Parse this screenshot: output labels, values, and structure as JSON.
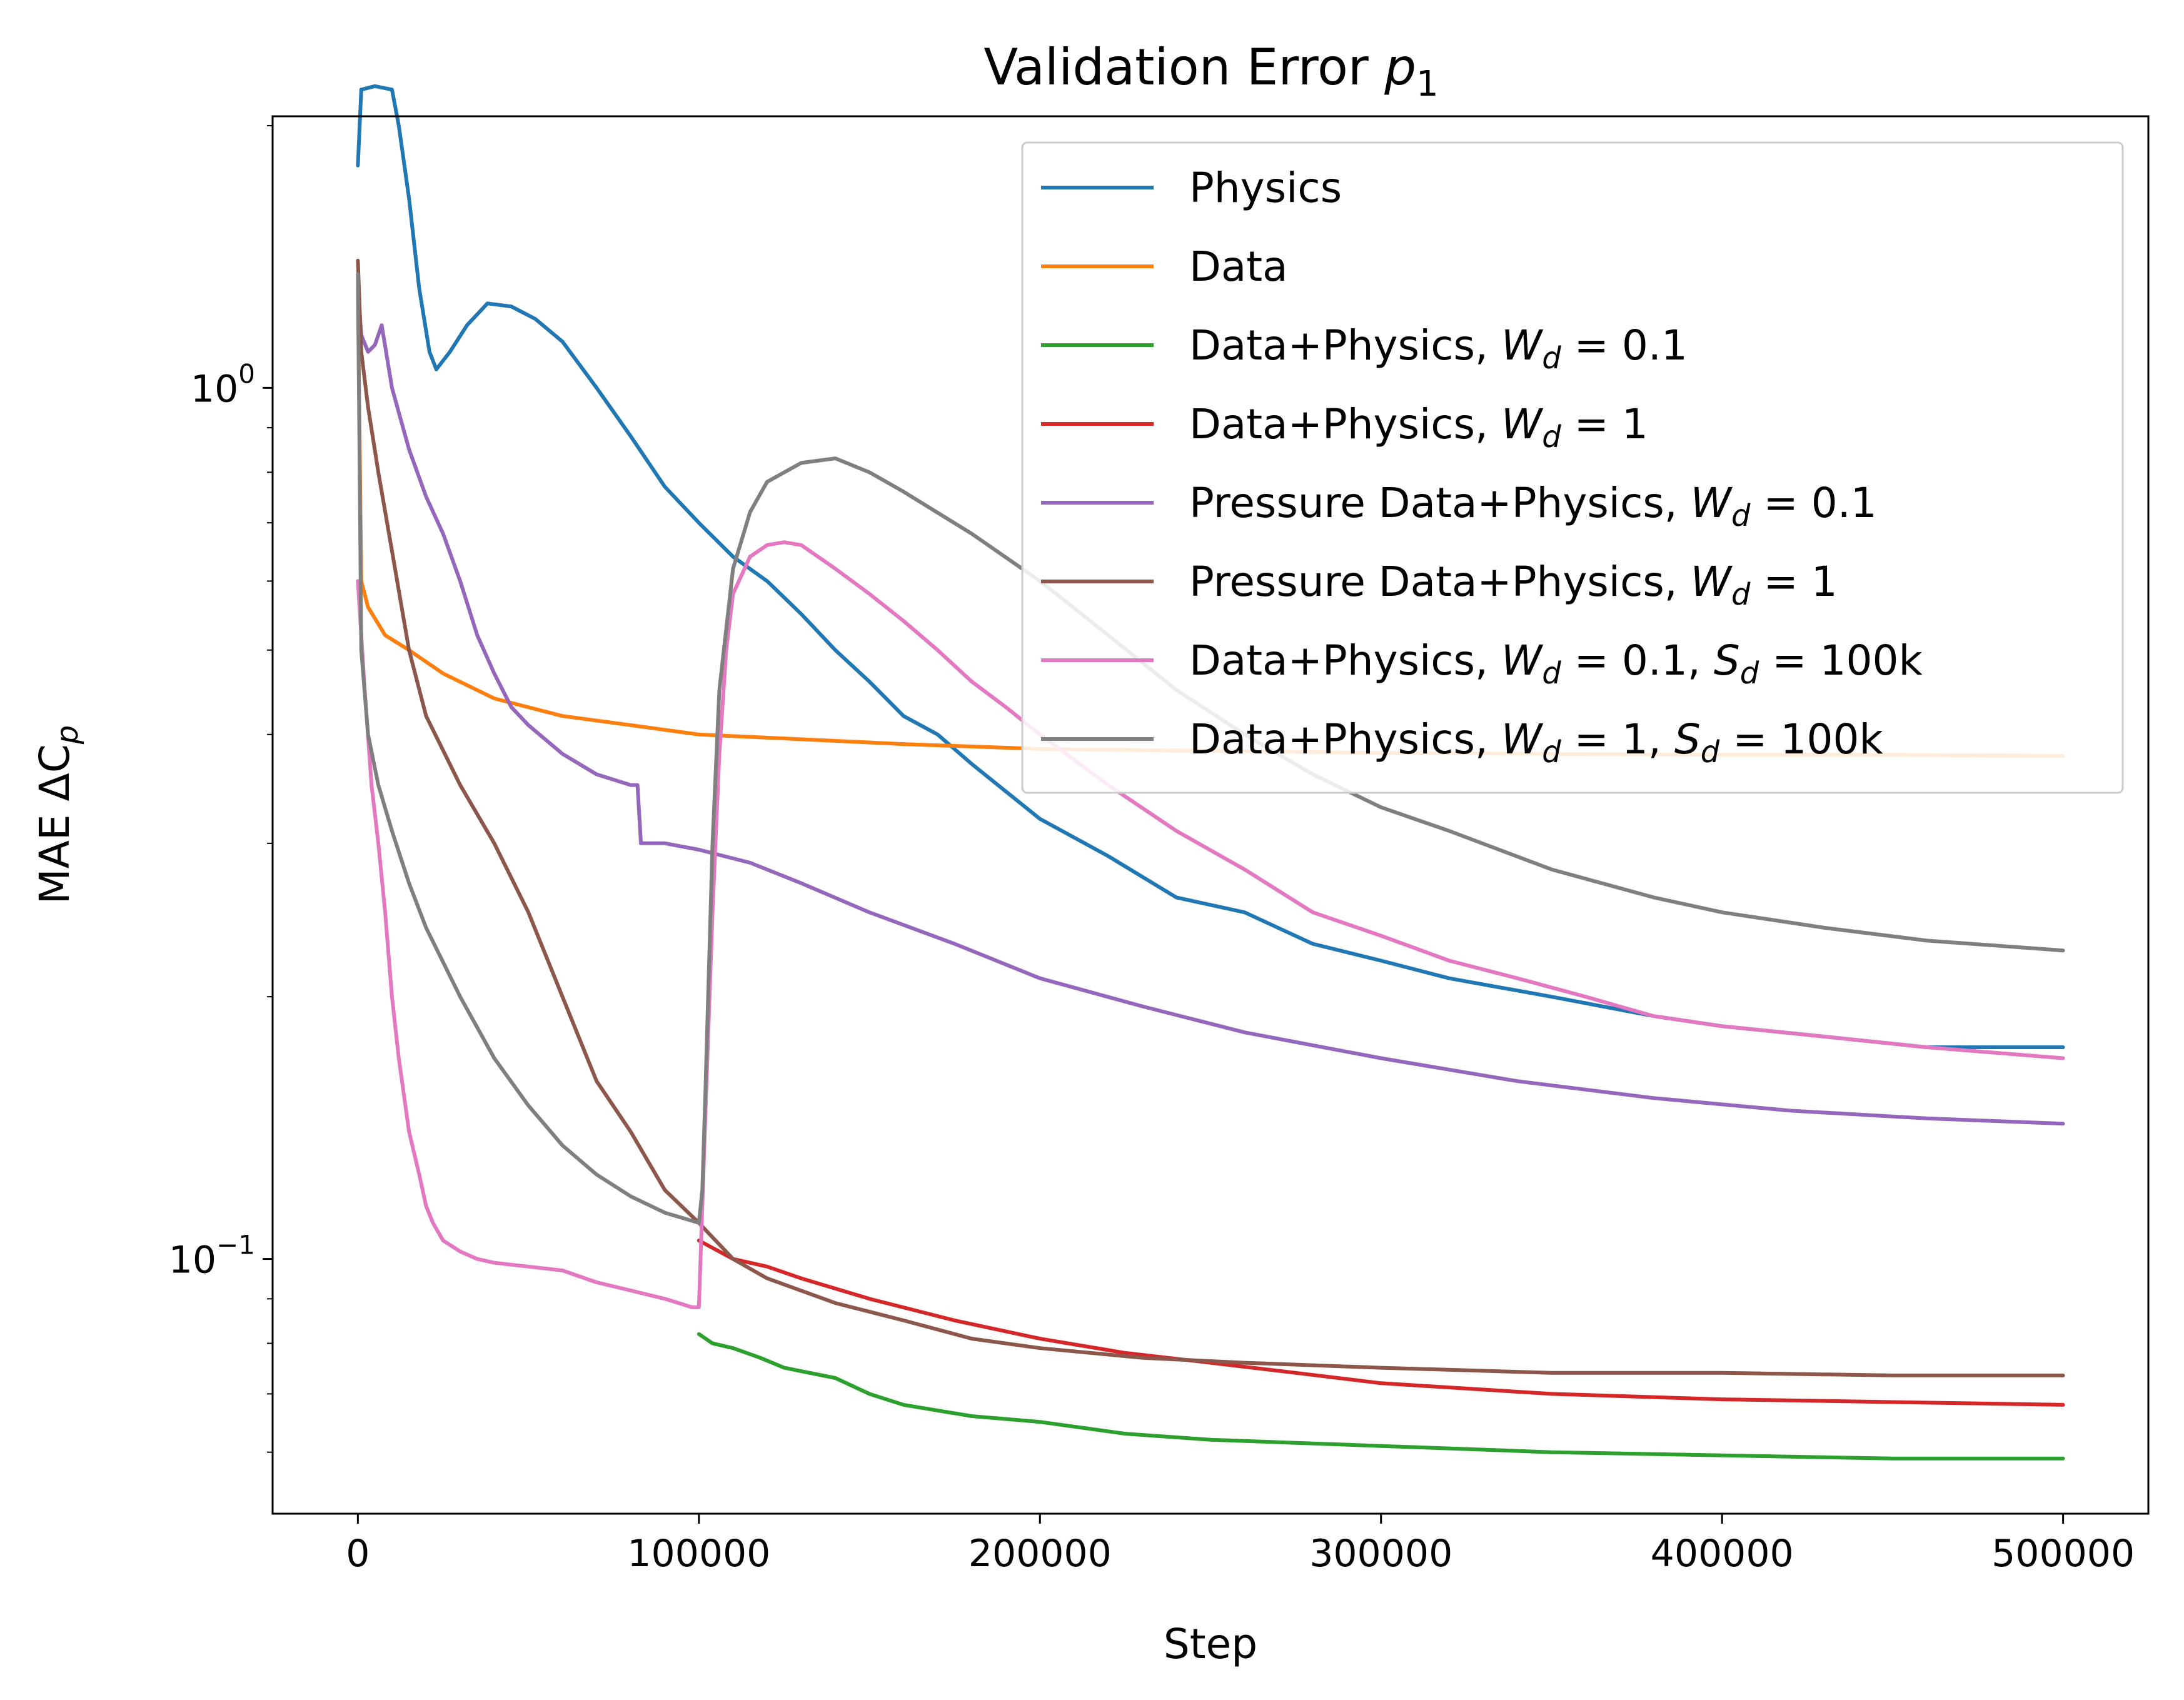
{
  "chart_data": {
    "type": "line",
    "title": {
      "main": "Validation Error ",
      "sym": "p",
      "sub": "1"
    },
    "xlabel": "Step",
    "ylabel": {
      "pre": "MAE ΔC",
      "sub": "p"
    },
    "xlim": [
      -25000,
      525000
    ],
    "ylim": [
      0.051,
      2.05
    ],
    "y_scale": "log",
    "grid": false,
    "legend_position": "top-right",
    "x_ticks": [
      {
        "value": 0,
        "label": "0"
      },
      {
        "value": 100000,
        "label": "100000"
      },
      {
        "value": 200000,
        "label": "200000"
      },
      {
        "value": 300000,
        "label": "300000"
      },
      {
        "value": 400000,
        "label": "400000"
      },
      {
        "value": 500000,
        "label": "500000"
      }
    ],
    "y_ticks": [
      {
        "value": 0.1,
        "base": "10",
        "exp": "−1"
      },
      {
        "value": 1,
        "base": "10",
        "exp": "0"
      }
    ],
    "series": [
      {
        "name": [
          {
            "t": "Physics"
          }
        ],
        "color": "#1f77b4",
        "x": [
          0,
          1000,
          5000,
          10000,
          12000,
          15000,
          18000,
          21000,
          23000,
          27000,
          32000,
          38000,
          45000,
          52000,
          60000,
          70000,
          80000,
          90000,
          100000,
          110000,
          120000,
          130000,
          140000,
          150000,
          160000,
          170000,
          180000,
          200000,
          220000,
          240000,
          260000,
          280000,
          300000,
          320000,
          350000,
          380000,
          400000,
          430000,
          460000,
          500000
        ],
        "y": [
          1.8,
          2.2,
          2.22,
          2.2,
          2.0,
          1.65,
          1.3,
          1.1,
          1.05,
          1.1,
          1.18,
          1.25,
          1.24,
          1.2,
          1.13,
          1.0,
          0.88,
          0.77,
          0.7,
          0.64,
          0.6,
          0.55,
          0.5,
          0.46,
          0.42,
          0.4,
          0.37,
          0.32,
          0.29,
          0.26,
          0.25,
          0.23,
          0.22,
          0.21,
          0.2,
          0.19,
          0.185,
          0.18,
          0.175,
          0.175
        ]
      },
      {
        "name": [
          {
            "t": "Data"
          }
        ],
        "color": "#ff7f0e",
        "x": [
          0,
          1000,
          3000,
          8000,
          15000,
          25000,
          40000,
          60000,
          80000,
          100000,
          130000,
          160000,
          200000,
          250000,
          300000,
          350000,
          400000,
          450000,
          500000
        ],
        "y": [
          1.3,
          0.6,
          0.56,
          0.52,
          0.5,
          0.47,
          0.44,
          0.42,
          0.41,
          0.4,
          0.395,
          0.39,
          0.385,
          0.383,
          0.381,
          0.38,
          0.379,
          0.379,
          0.378
        ]
      },
      {
        "name": [
          {
            "t": "Data+Physics, "
          },
          {
            "t": "W",
            "i": true
          },
          {
            "t": "d",
            "sub": true
          },
          {
            "t": " = 0.1"
          }
        ],
        "color": "#2ca02c",
        "x": [
          100000,
          104000,
          110000,
          118000,
          125000,
          140000,
          150000,
          160000,
          180000,
          200000,
          225000,
          250000,
          275000,
          300000,
          325000,
          350000,
          400000,
          450000,
          500000
        ],
        "y": [
          0.082,
          0.08,
          0.079,
          0.077,
          0.075,
          0.073,
          0.07,
          0.068,
          0.066,
          0.065,
          0.063,
          0.062,
          0.0615,
          0.061,
          0.0605,
          0.06,
          0.0595,
          0.059,
          0.059
        ]
      },
      {
        "name": [
          {
            "t": "Data+Physics, "
          },
          {
            "t": "W",
            "i": true
          },
          {
            "t": "d",
            "sub": true
          },
          {
            "t": " = 1"
          }
        ],
        "color": "#d62728",
        "x": [
          100000,
          110000,
          120000,
          130000,
          150000,
          175000,
          200000,
          225000,
          250000,
          275000,
          300000,
          350000,
          400000,
          450000,
          500000
        ],
        "y": [
          0.105,
          0.1,
          0.098,
          0.095,
          0.09,
          0.085,
          0.081,
          0.078,
          0.076,
          0.074,
          0.072,
          0.07,
          0.069,
          0.0685,
          0.068
        ]
      },
      {
        "name": [
          {
            "t": "Pressure Data+Physics, "
          },
          {
            "t": "W",
            "i": true
          },
          {
            "t": "d",
            "sub": true
          },
          {
            "t": " = 0.1"
          }
        ],
        "color": "#9467bd",
        "x": [
          0,
          1000,
          3000,
          5000,
          7000,
          10000,
          15000,
          20000,
          25000,
          30000,
          35000,
          40000,
          45000,
          50000,
          60000,
          70000,
          80000,
          82000,
          83000,
          90000,
          100000,
          115000,
          130000,
          150000,
          175000,
          200000,
          230000,
          260000,
          300000,
          340000,
          380000,
          420000,
          460000,
          500000
        ],
        "y": [
          1.3,
          1.15,
          1.1,
          1.12,
          1.18,
          1.0,
          0.85,
          0.75,
          0.68,
          0.6,
          0.52,
          0.47,
          0.43,
          0.41,
          0.38,
          0.36,
          0.35,
          0.35,
          0.3,
          0.3,
          0.295,
          0.285,
          0.27,
          0.25,
          0.23,
          0.21,
          0.195,
          0.182,
          0.17,
          0.16,
          0.153,
          0.148,
          0.145,
          0.143
        ]
      },
      {
        "name": [
          {
            "t": "Pressure Data+Physics, "
          },
          {
            "t": "W",
            "i": true
          },
          {
            "t": "d",
            "sub": true
          },
          {
            "t": " = 1"
          }
        ],
        "color": "#8c564b",
        "x": [
          0,
          1000,
          3000,
          6000,
          10000,
          15000,
          20000,
          30000,
          40000,
          50000,
          60000,
          70000,
          80000,
          90000,
          100000,
          110000,
          120000,
          140000,
          160000,
          180000,
          200000,
          230000,
          260000,
          300000,
          350000,
          400000,
          450000,
          500000
        ],
        "y": [
          1.4,
          1.1,
          0.95,
          0.8,
          0.65,
          0.5,
          0.42,
          0.35,
          0.3,
          0.25,
          0.2,
          0.16,
          0.14,
          0.12,
          0.11,
          0.1,
          0.095,
          0.089,
          0.085,
          0.081,
          0.079,
          0.077,
          0.076,
          0.075,
          0.074,
          0.074,
          0.0735,
          0.0735
        ]
      },
      {
        "name": [
          {
            "t": "Data+Physics, "
          },
          {
            "t": "W",
            "i": true
          },
          {
            "t": "d",
            "sub": true
          },
          {
            "t": " = 0.1, "
          },
          {
            "t": "S",
            "i": true
          },
          {
            "t": "d",
            "sub": true
          },
          {
            "t": " = 100k"
          }
        ],
        "color": "#e377c2",
        "x": [
          0,
          2000,
          4000,
          6000,
          8000,
          10000,
          12000,
          15000,
          18000,
          20000,
          22000,
          25000,
          30000,
          35000,
          40000,
          50000,
          60000,
          70000,
          80000,
          90000,
          98000,
          100000,
          102000,
          104000,
          106000,
          108000,
          110000,
          115000,
          120000,
          125000,
          130000,
          140000,
          150000,
          160000,
          170000,
          180000,
          190000,
          200000,
          220000,
          240000,
          260000,
          280000,
          300000,
          320000,
          340000,
          360000,
          380000,
          400000,
          430000,
          460000,
          500000
        ],
        "y": [
          0.6,
          0.45,
          0.35,
          0.3,
          0.25,
          0.2,
          0.17,
          0.14,
          0.125,
          0.115,
          0.11,
          0.105,
          0.102,
          0.1,
          0.099,
          0.098,
          0.097,
          0.094,
          0.092,
          0.09,
          0.088,
          0.088,
          0.15,
          0.25,
          0.38,
          0.5,
          0.58,
          0.64,
          0.66,
          0.665,
          0.66,
          0.62,
          0.58,
          0.54,
          0.5,
          0.46,
          0.43,
          0.4,
          0.35,
          0.31,
          0.28,
          0.25,
          0.235,
          0.22,
          0.21,
          0.2,
          0.19,
          0.185,
          0.18,
          0.175,
          0.17
        ]
      },
      {
        "name": [
          {
            "t": "Data+Physics, "
          },
          {
            "t": "W",
            "i": true
          },
          {
            "t": "d",
            "sub": true
          },
          {
            "t": " = 1, "
          },
          {
            "t": "S",
            "i": true
          },
          {
            "t": "d",
            "sub": true
          },
          {
            "t": " = 100k"
          }
        ],
        "color": "#7f7f7f",
        "x": [
          0,
          1000,
          3000,
          6000,
          10000,
          15000,
          20000,
          30000,
          40000,
          50000,
          60000,
          70000,
          80000,
          90000,
          100000,
          101000,
          102000,
          103000,
          104000,
          106000,
          110000,
          115000,
          120000,
          130000,
          140000,
          150000,
          160000,
          180000,
          200000,
          220000,
          240000,
          260000,
          280000,
          300000,
          320000,
          350000,
          380000,
          400000,
          430000,
          460000,
          500000
        ],
        "y": [
          1.35,
          0.5,
          0.4,
          0.35,
          0.31,
          0.27,
          0.24,
          0.2,
          0.17,
          0.15,
          0.135,
          0.125,
          0.118,
          0.113,
          0.11,
          0.12,
          0.16,
          0.22,
          0.3,
          0.45,
          0.62,
          0.72,
          0.78,
          0.82,
          0.83,
          0.8,
          0.76,
          0.68,
          0.6,
          0.52,
          0.45,
          0.4,
          0.36,
          0.33,
          0.31,
          0.28,
          0.26,
          0.25,
          0.24,
          0.232,
          0.226
        ]
      }
    ]
  }
}
